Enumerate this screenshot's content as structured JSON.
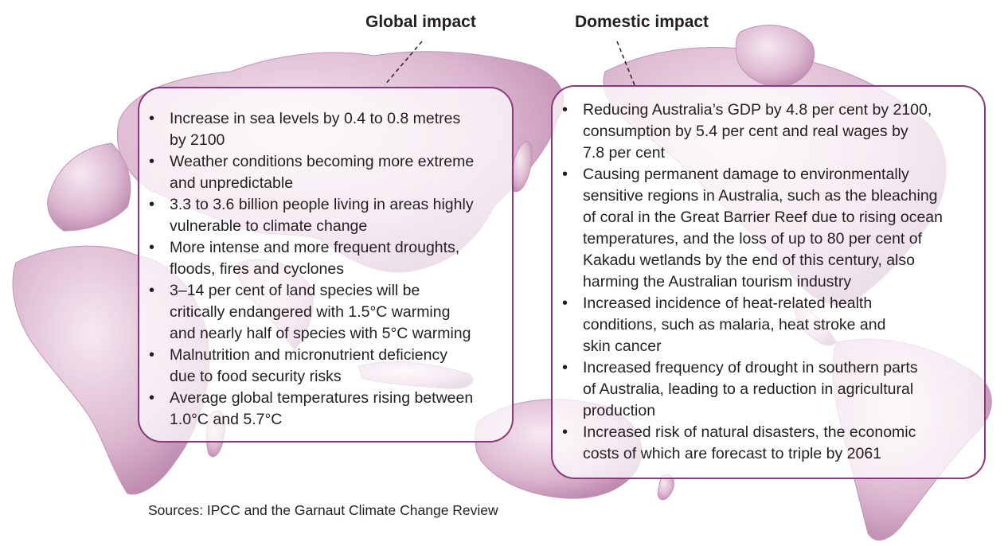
{
  "global": {
    "heading": "Global impact",
    "items": [
      "Increase in sea levels by 0.4 to 0.8 metres\nby 2100",
      "Weather conditions becoming more extreme\nand unpredictable",
      "3.3 to 3.6 billion people living in areas highly\nvulnerable to climate change",
      "More intense and more frequent droughts,\nfloods, fires and cyclones",
      "3–14 per cent of land species will be\ncritically endangered with 1.5°C warming\nand nearly half of species with 5°C warming",
      "Malnutrition and micronutrient deficiency\n due to food security risks",
      "Average global temperatures rising between\n1.0°C and 5.7°C"
    ]
  },
  "domestic": {
    "heading": "Domestic impact",
    "items": [
      "Reducing Australia’s GDP by 4.8 per cent by 2100,\nconsumption by 5.4 per cent and real wages by\n7.8 per cent",
      "Causing permanent damage to environmentally\nsensitive regions in Australia, such as the bleaching\nof coral in the Great Barrier Reef due to rising ocean\ntemperatures, and the loss of up to 80 per cent of\nKakadu wetlands by the end of this century, also\nharming the Australian tourism industry",
      "Increased incidence of heat-related health\nconditions, such as malaria, heat stroke and\nskin cancer",
      "Increased frequency of drought in southern parts\nof Australia, leading to a reduction in agricultural\nproduction",
      "Increased risk of natural disasters, the economic\ncosts of which are forecast to triple by 2061"
    ]
  },
  "sources": "Sources: IPCC and the Garnaut Climate Change Review",
  "colors": {
    "land": "#d9b3cc",
    "land_edge": "#b47aa2",
    "border": "#8a3a7a"
  }
}
